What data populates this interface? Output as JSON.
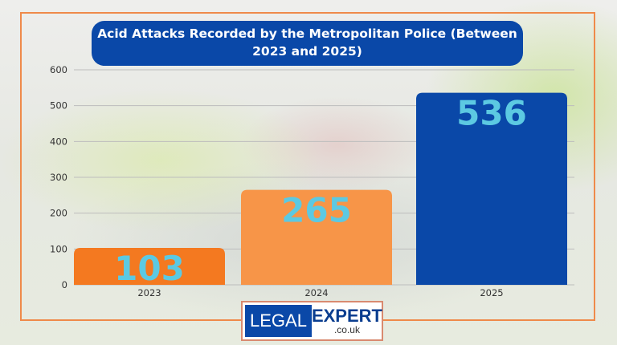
{
  "chart_data": {
    "type": "bar",
    "title": "Acid Attacks Recorded by the Metropolitan Police (Between 2023 and 2025)",
    "categories": [
      "2023",
      "2024",
      "2025"
    ],
    "values": [
      103,
      265,
      536
    ],
    "data_labels": [
      "103",
      "265",
      "536"
    ],
    "ylim": [
      0,
      600
    ],
    "yticks": [
      "0",
      "100",
      "200",
      "300",
      "400",
      "500",
      "600"
    ],
    "grid": true,
    "colors": [
      "#f47920",
      "#f79548",
      "#0a48a8"
    ],
    "label_color": "#5cc9e2"
  },
  "logo": {
    "left": "LEGAL",
    "right": "EXPERT",
    "domain": ".co.uk"
  }
}
